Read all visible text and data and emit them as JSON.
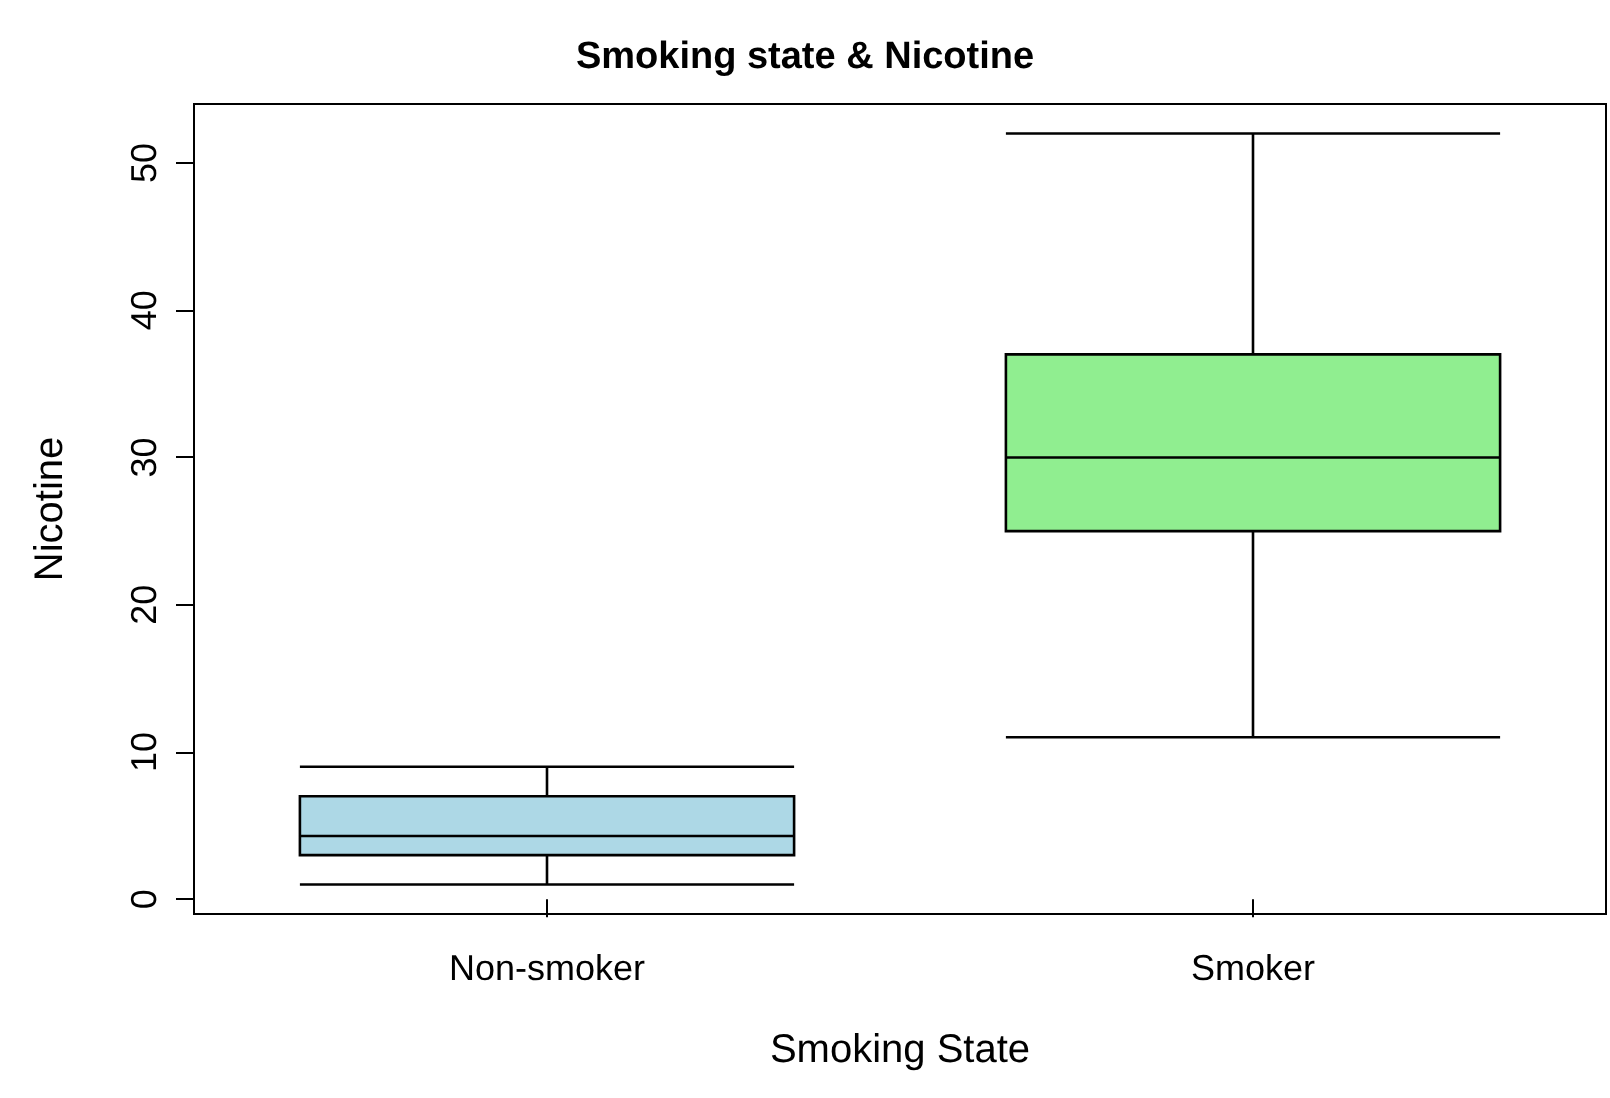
{
  "chart_data": {
    "type": "box",
    "title": "Smoking state & Nicotine",
    "xlabel": "Smoking State",
    "ylabel": "Nicotine",
    "categories": [
      "Non-smoker",
      "Smoker"
    ],
    "colors": [
      "#add8e6",
      "#90ee90"
    ],
    "boxes": [
      {
        "low": 1,
        "q1": 3,
        "median": 4.3,
        "q3": 7,
        "high": 9
      },
      {
        "low": 11,
        "q1": 25,
        "median": 30,
        "q3": 37,
        "high": 52
      }
    ],
    "ylim": [
      -1,
      54
    ],
    "yticks": [
      0,
      10,
      20,
      30,
      40,
      50
    ]
  }
}
